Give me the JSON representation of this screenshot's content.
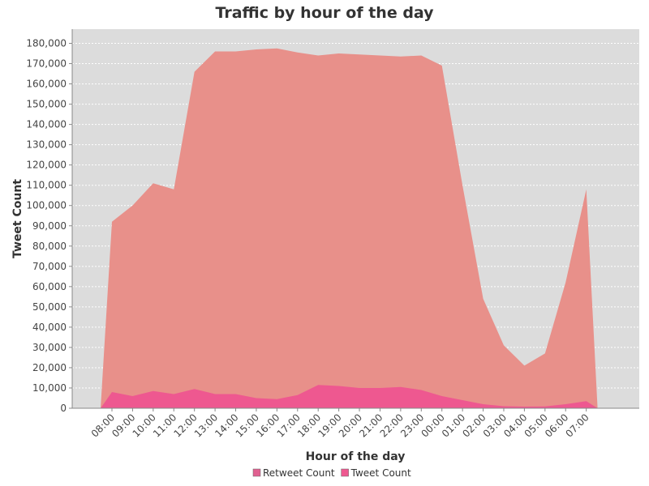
{
  "chart_data": {
    "type": "area",
    "title": "Traffic by hour of the day",
    "xlabel": "Hour of the day",
    "ylabel": "Tweet Count",
    "categories": [
      "08:00",
      "09:00",
      "10:00",
      "11:00",
      "12:00",
      "13:00",
      "14:00",
      "15:00",
      "16:00",
      "17:00",
      "18:00",
      "19:00",
      "20:00",
      "21:00",
      "22:00",
      "23:00",
      "00:00",
      "01:00",
      "02:00",
      "03:00",
      "04:00",
      "05:00",
      "06:00",
      "07:00"
    ],
    "ylim": [
      0,
      187000
    ],
    "yticks": [
      0,
      10000,
      20000,
      30000,
      40000,
      50000,
      60000,
      70000,
      80000,
      90000,
      100000,
      110000,
      120000,
      130000,
      140000,
      150000,
      160000,
      170000,
      180000
    ],
    "grid": true,
    "legend_position": "bottom",
    "start_value": 0,
    "end_value": 0,
    "series": [
      {
        "name": "Retweet Count",
        "color": "#e8908a",
        "values": [
          92000,
          100000,
          111000,
          108000,
          166000,
          176000,
          176000,
          177000,
          177500,
          175500,
          174000,
          175000,
          174500,
          174000,
          173500,
          174000,
          169000,
          110000,
          54000,
          31000,
          21000,
          27000,
          62000,
          108000
        ]
      },
      {
        "name": "Tweet Count",
        "color": "#ee5890",
        "values": [
          8000,
          6000,
          8500,
          7000,
          9500,
          7000,
          7000,
          5000,
          4500,
          6500,
          11500,
          11000,
          10000,
          10000,
          10500,
          9000,
          6000,
          4000,
          2000,
          1000,
          800,
          900,
          2000,
          3500
        ]
      }
    ],
    "legend_swatch_colors": [
      "#e06090",
      "#ee5890"
    ]
  }
}
